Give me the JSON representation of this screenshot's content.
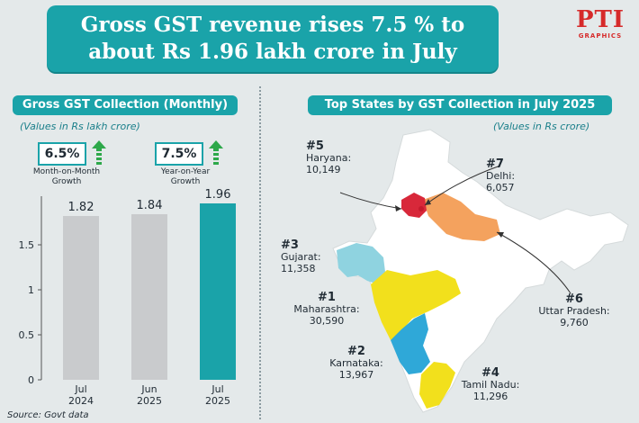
{
  "header": {
    "title_line1": "Gross GST revenue rises 7.5 % to",
    "title_line2": "about Rs 1.96 lakh crore in July",
    "logo_text": "PTI",
    "logo_sub": "GRAPHICS"
  },
  "left_panel": {
    "title": "Gross GST Collection (Monthly)",
    "unit": "(Values in Rs lakh crore)",
    "badges": [
      {
        "value": "6.5%",
        "label_line1": "Month-on-Month",
        "label_line2": "Growth"
      },
      {
        "value": "7.5%",
        "label_line1": "Year-on-Year",
        "label_line2": "Growth"
      }
    ],
    "source": "Source: Govt data"
  },
  "chart_data": {
    "type": "bar",
    "categories": [
      [
        "Jul",
        "2024"
      ],
      [
        "Jun",
        "2025"
      ],
      [
        "Jul",
        "2025"
      ]
    ],
    "values": [
      1.82,
      1.84,
      1.96
    ],
    "value_labels": [
      "1.82",
      "1.84",
      "1.96"
    ],
    "ylim": [
      0,
      2.0
    ],
    "yticks": [
      0,
      0.5,
      1,
      1.5
    ],
    "ytick_labels": [
      "0",
      "0.5",
      "1",
      "1.5"
    ],
    "colors": [
      "#c9cbcd",
      "#c9cbcd",
      "#1aa3a9"
    ],
    "title": "Gross GST Collection (Monthly)",
    "ylabel": "Rs lakh crore"
  },
  "right_panel": {
    "title": "Top States by GST Collection in July 2025",
    "unit": "(Values in Rs crore)",
    "states": [
      {
        "rank": "#5",
        "name": "Haryana:",
        "value": "10,149",
        "color": "#d8283a"
      },
      {
        "rank": "#7",
        "name": "Delhi:",
        "value": "6,057",
        "color": "#d8283a"
      },
      {
        "rank": "#3",
        "name": "Gujarat:",
        "value": "11,358",
        "color": "#8fd3e0"
      },
      {
        "rank": "#1",
        "name": "Maharashtra:",
        "value": "30,590",
        "color": "#f2e01c"
      },
      {
        "rank": "#6",
        "name": "Uttar Pradesh:",
        "value": "9,760",
        "color": "#f4a25e"
      },
      {
        "rank": "#2",
        "name": "Karnataka:",
        "value": "13,967",
        "color": "#2fa8d8"
      },
      {
        "rank": "#4",
        "name": "Tamil Nadu:",
        "value": "11,296",
        "color": "#f2e01c"
      }
    ]
  },
  "colors": {
    "accent": "#1aa3a9",
    "arrow_green": "#2da84a",
    "background": "#e4e9ea",
    "map_base": "#ffffff"
  }
}
